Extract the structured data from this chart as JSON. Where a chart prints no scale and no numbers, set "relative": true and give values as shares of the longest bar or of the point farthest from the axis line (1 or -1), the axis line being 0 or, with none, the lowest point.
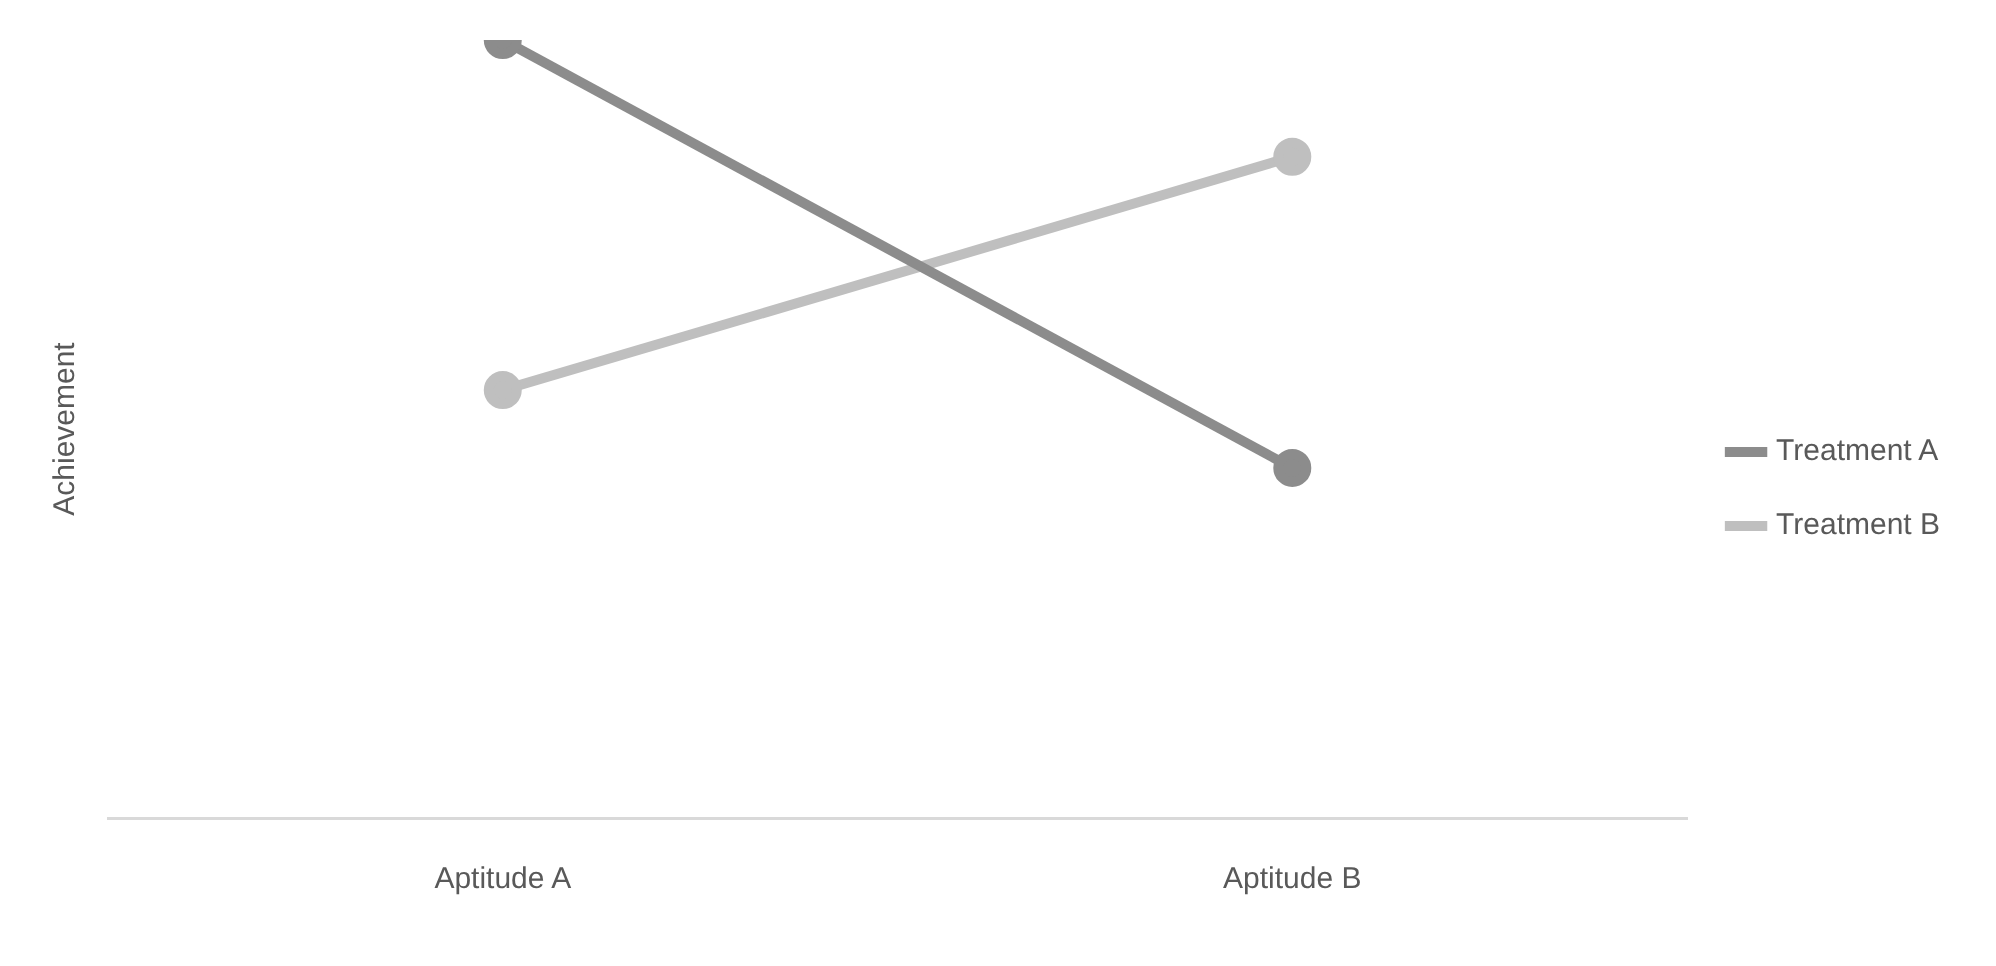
{
  "chart_data": {
    "type": "line",
    "ylabel": "Achievement",
    "relative": true,
    "categories": [
      "Aptitude A",
      "Aptitude B"
    ],
    "series": [
      {
        "name": "Treatment A",
        "color": "#8c8c8c",
        "values": [
          1,
          0.45
        ]
      },
      {
        "name": "Treatment B",
        "color": "#bfbfbf",
        "values": [
          0.55,
          0.85
        ]
      }
    ],
    "marker": "circle",
    "legend": "right",
    "grid": false
  }
}
